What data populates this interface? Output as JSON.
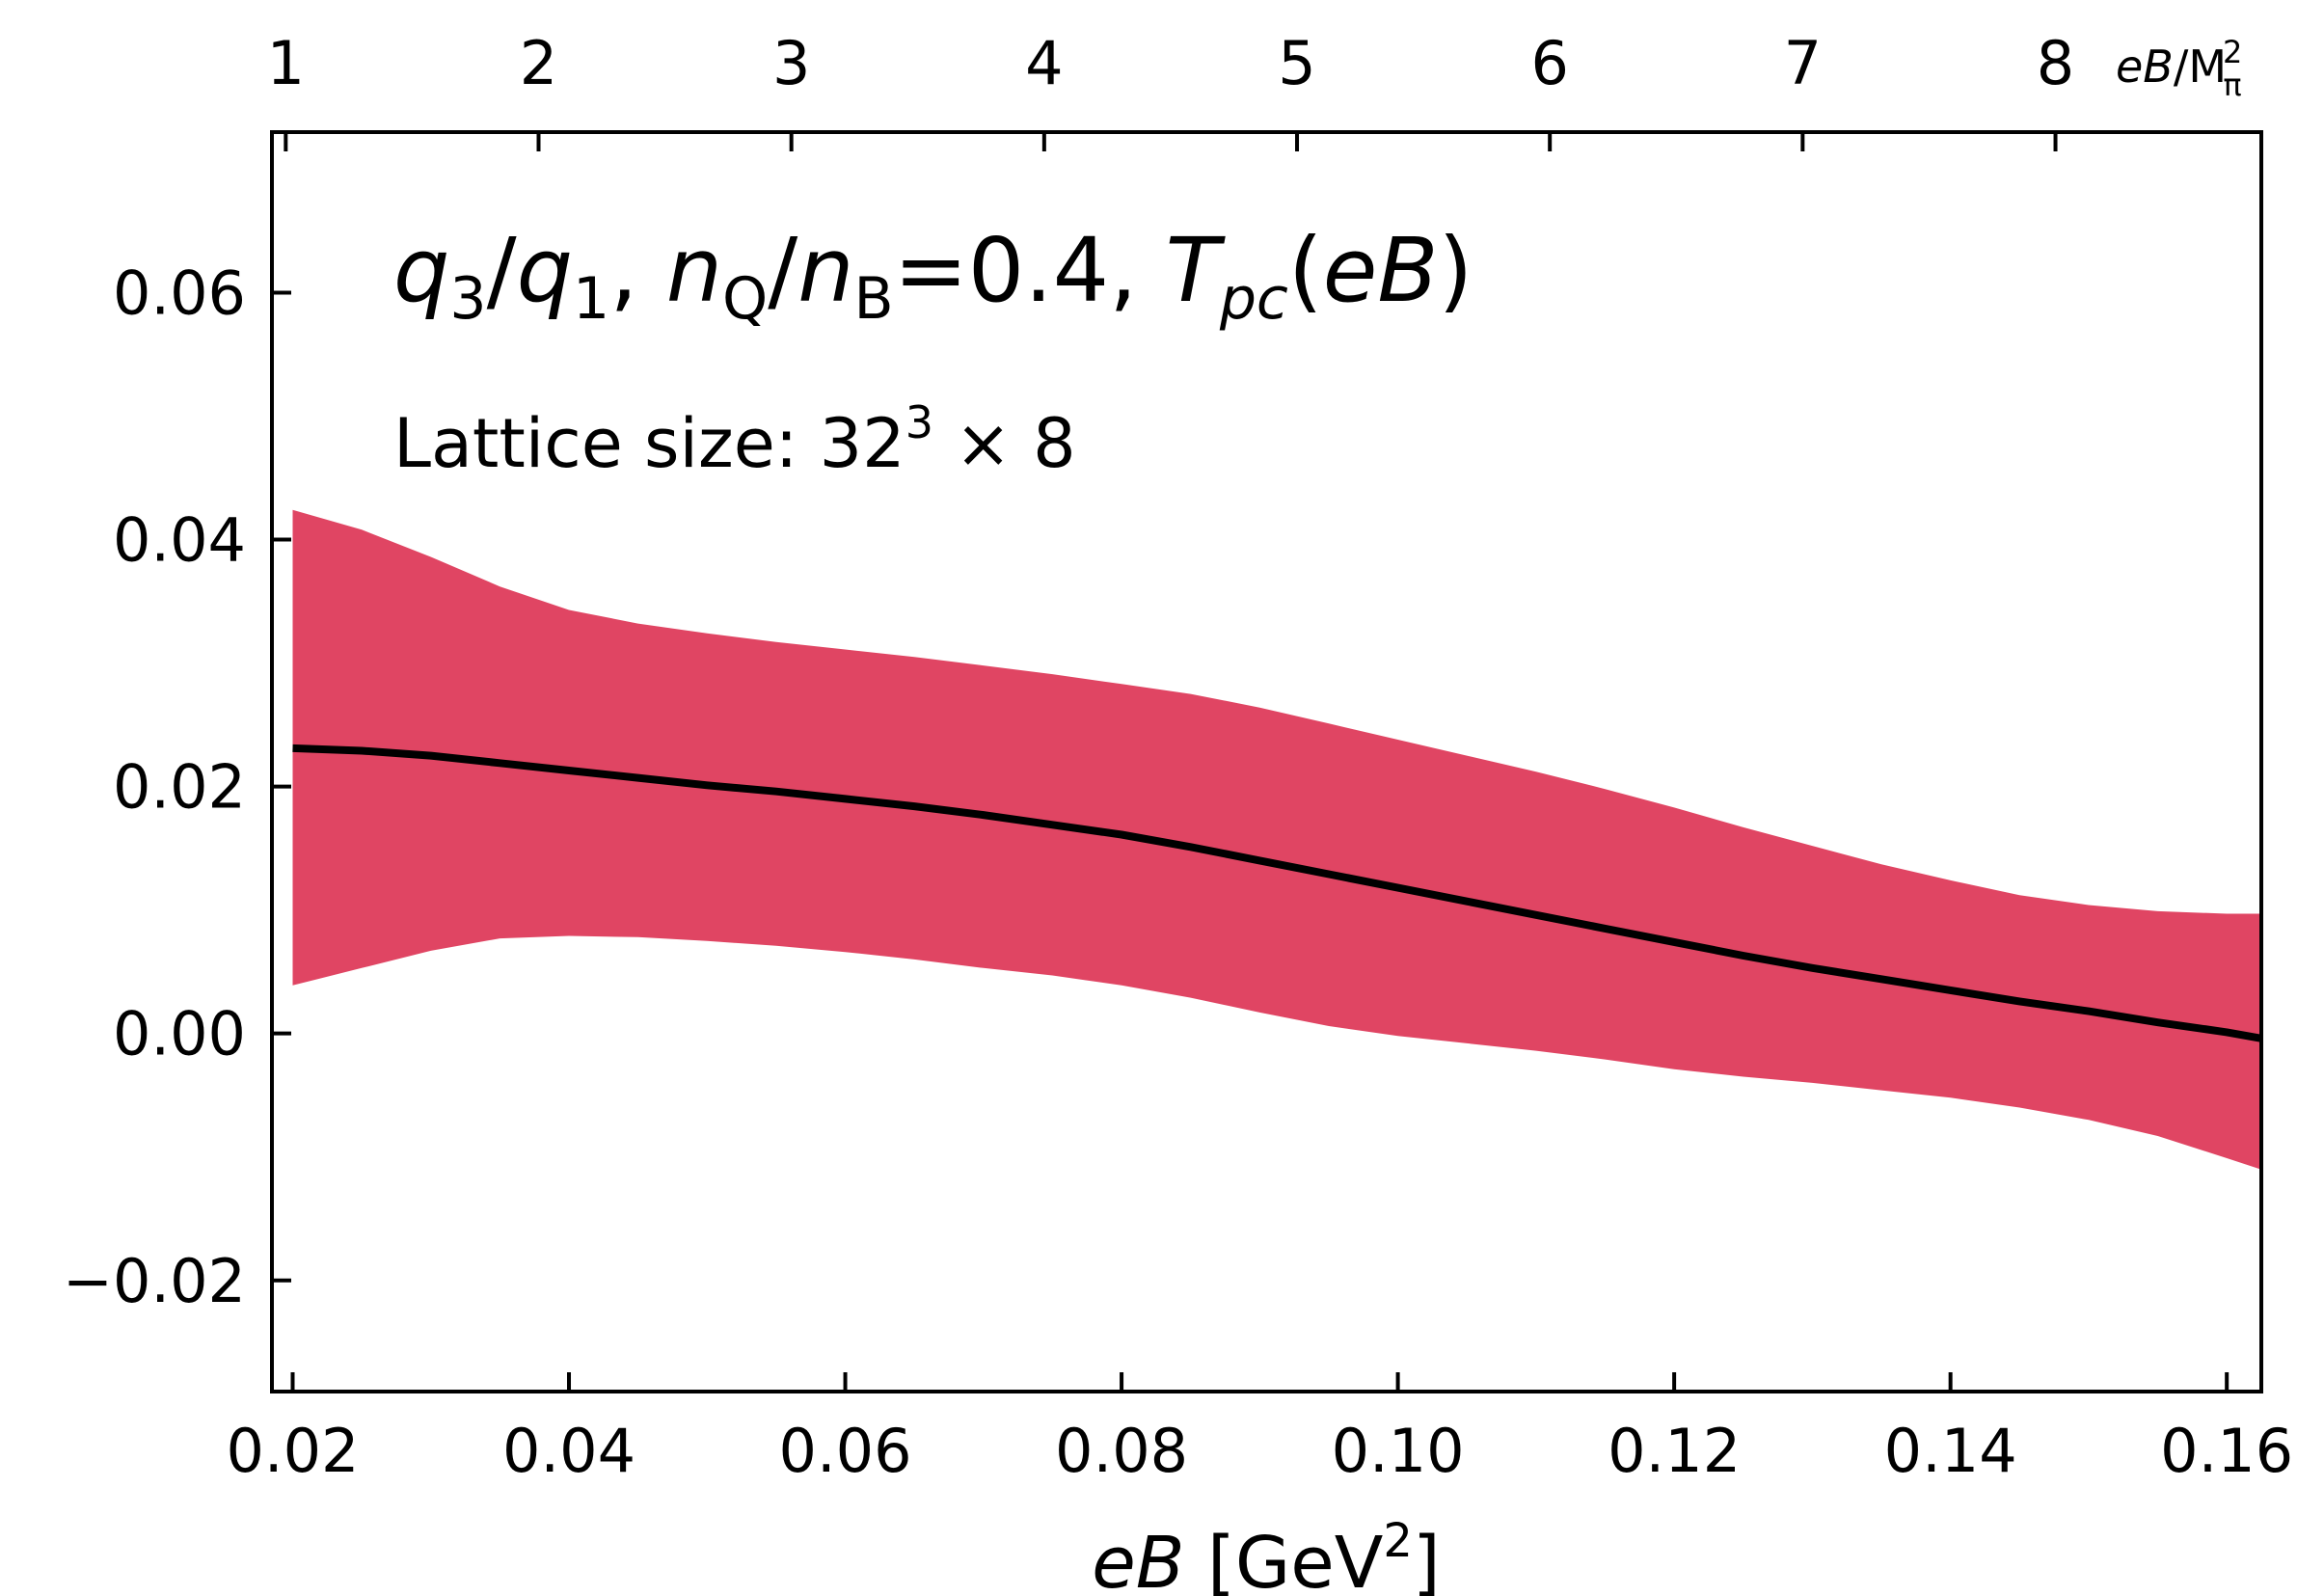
{
  "chart_data": {
    "type": "area",
    "title": "",
    "xlabel": "eB [GeV²]",
    "ylabel": "",
    "xlim": [
      0.0185,
      0.1625
    ],
    "ylim": [
      -0.029,
      0.073
    ],
    "grid": false,
    "legend": "none",
    "x_ticks": [
      0.02,
      0.04,
      0.06,
      0.08,
      0.1,
      0.12,
      0.14,
      0.16
    ],
    "x_tick_labels": [
      "0.02",
      "0.04",
      "0.06",
      "0.08",
      "0.10",
      "0.12",
      "0.14",
      "0.16"
    ],
    "y_ticks": [
      -0.02,
      0.0,
      0.02,
      0.04,
      0.06
    ],
    "y_tick_labels": [
      "−0.02",
      "0.00",
      "0.02",
      "0.04",
      "0.06"
    ],
    "top_axis": {
      "label": "eB/M²π",
      "ticks": [
        1,
        2,
        3,
        4,
        5,
        6,
        7,
        8
      ],
      "tick_labels": [
        "1",
        "2",
        "3",
        "4",
        "5",
        "6",
        "7",
        "8"
      ],
      "tick_positions_eB": [
        0.0195,
        0.0378,
        0.0561,
        0.0744,
        0.0927,
        0.111,
        0.1293,
        0.1476
      ]
    },
    "annotations": {
      "main": "q3/q1, nQ/nB=0.4, Tpc(eB)",
      "lattice": "Lattice size: 32³ × 8"
    },
    "band_color": "#e04563",
    "line_color": "#000000",
    "series": [
      {
        "type": "line",
        "x": [
          0.02,
          0.025,
          0.03,
          0.035,
          0.04,
          0.045,
          0.05,
          0.055,
          0.06,
          0.065,
          0.07,
          0.075,
          0.08,
          0.085,
          0.09,
          0.095,
          0.1,
          0.105,
          0.11,
          0.115,
          0.12,
          0.125,
          0.13,
          0.135,
          0.14,
          0.145,
          0.15,
          0.155,
          0.16,
          0.163
        ],
        "y": [
          0.0231,
          0.0229,
          0.0225,
          0.0219,
          0.0213,
          0.0207,
          0.0201,
          0.0196,
          0.019,
          0.0184,
          0.0177,
          0.0169,
          0.0161,
          0.0151,
          0.014,
          0.0129,
          0.0118,
          0.0107,
          0.0096,
          0.0085,
          0.0074,
          0.0063,
          0.0053,
          0.0044,
          0.0035,
          0.0026,
          0.0018,
          0.0009,
          0.0001,
          -0.0005
        ]
      },
      {
        "type": "band",
        "x": [
          0.02,
          0.025,
          0.03,
          0.035,
          0.04,
          0.045,
          0.05,
          0.055,
          0.06,
          0.065,
          0.07,
          0.075,
          0.08,
          0.085,
          0.09,
          0.095,
          0.1,
          0.105,
          0.11,
          0.115,
          0.12,
          0.125,
          0.13,
          0.135,
          0.14,
          0.145,
          0.15,
          0.155,
          0.16,
          0.163
        ],
        "upper": [
          0.0424,
          0.0408,
          0.0386,
          0.0362,
          0.0343,
          0.0332,
          0.0324,
          0.0317,
          0.0311,
          0.0305,
          0.0298,
          0.0291,
          0.0283,
          0.0275,
          0.0264,
          0.0251,
          0.0238,
          0.0225,
          0.0212,
          0.0198,
          0.0183,
          0.0167,
          0.0152,
          0.0137,
          0.0124,
          0.0112,
          0.0104,
          0.0099,
          0.0097,
          0.0097
        ],
        "lower": [
          0.0039,
          0.0053,
          0.0067,
          0.0077,
          0.0079,
          0.0078,
          0.0075,
          0.0071,
          0.0066,
          0.006,
          0.0053,
          0.0047,
          0.0039,
          0.0029,
          0.0017,
          0.0006,
          -0.0002,
          -0.0008,
          -0.0014,
          -0.0021,
          -0.0029,
          -0.0035,
          -0.004,
          -0.0046,
          -0.0052,
          -0.006,
          -0.007,
          -0.0083,
          -0.0101,
          -0.0112
        ]
      }
    ]
  }
}
